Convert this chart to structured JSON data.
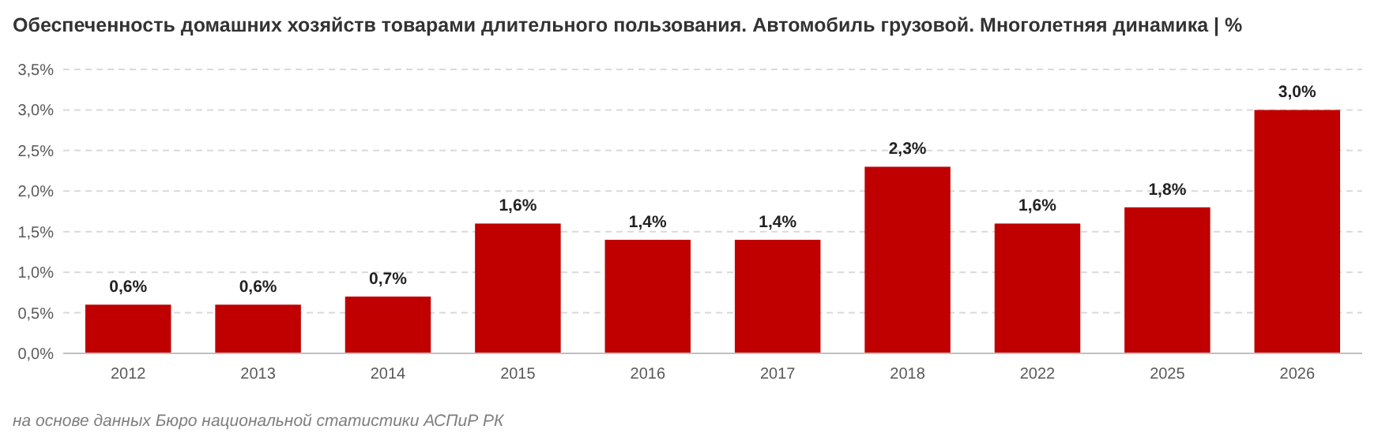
{
  "chart_data": {
    "type": "bar",
    "title": "Обеспеченность домашних хозяйств товарами длительного пользования. Автомобиль грузовой. Многолетняя динамика | %",
    "categories": [
      "2012",
      "2013",
      "2014",
      "2015",
      "2016",
      "2017",
      "2018",
      "2022",
      "2025",
      "2026"
    ],
    "values": [
      0.6,
      0.6,
      0.7,
      1.6,
      1.4,
      1.4,
      2.3,
      1.6,
      1.8,
      3.0
    ],
    "value_labels": [
      "0,6%",
      "0,6%",
      "0,7%",
      "1,6%",
      "1,4%",
      "1,4%",
      "2,3%",
      "1,6%",
      "1,8%",
      "3,0%"
    ],
    "color": "#c00000",
    "ylim": [
      0,
      3.5
    ],
    "yticks": [
      {
        "value": 0,
        "label": "0,0%"
      },
      {
        "value": 0.5,
        "label": "0,5%"
      },
      {
        "value": 1,
        "label": "1,0%"
      },
      {
        "value": 1.5,
        "label": "1,5%"
      },
      {
        "value": 2,
        "label": "2,0%"
      },
      {
        "value": 2.5,
        "label": "2,5%"
      },
      {
        "value": 3,
        "label": "3,0%"
      },
      {
        "value": 3.5,
        "label": "3,5%"
      }
    ],
    "grid": "y",
    "annotations": [
      "на основе данных Бюро национальной статистики АСПиР РК"
    ]
  }
}
